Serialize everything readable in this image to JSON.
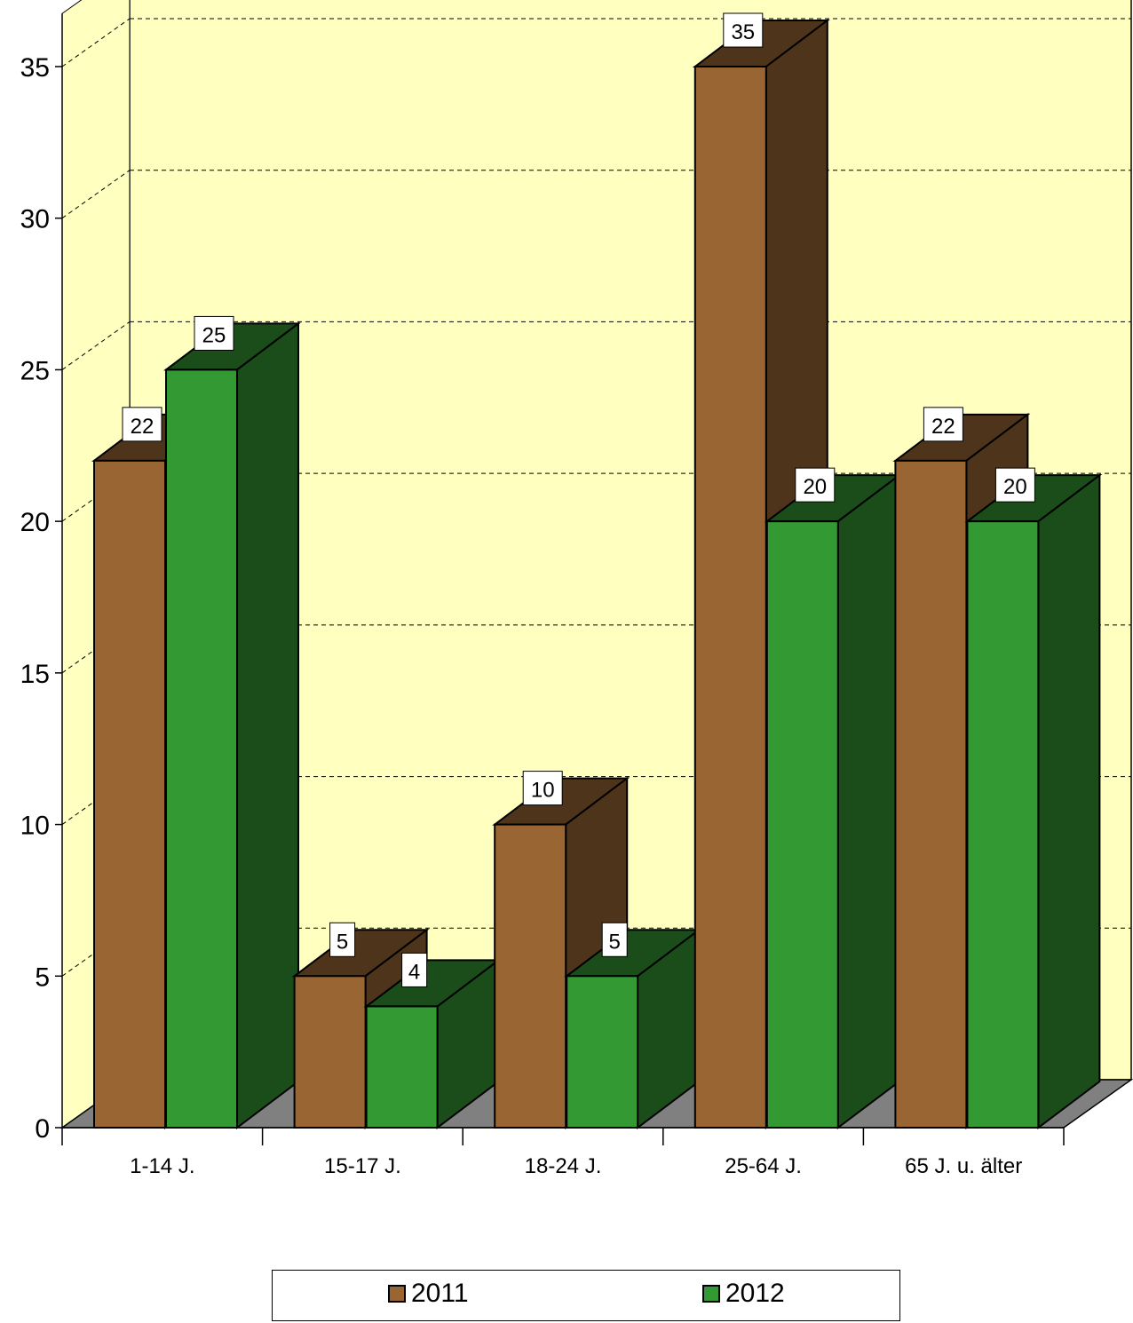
{
  "chart_data": {
    "type": "bar",
    "categories": [
      "1-14 J.",
      "15-17 J.",
      "18-24 J.",
      "25-64 J.",
      "65 J. u. älter"
    ],
    "series": [
      {
        "name": "2011",
        "values": [
          22,
          5,
          10,
          35,
          22
        ],
        "color": "#996633",
        "side_color": "#4d341a"
      },
      {
        "name": "2012",
        "values": [
          25,
          4,
          5,
          20,
          20
        ],
        "color": "#339933",
        "side_color": "#1a4d1a"
      }
    ],
    "ylim": [
      0,
      35
    ],
    "yticks": [
      0,
      5,
      10,
      15,
      20,
      25,
      30,
      35
    ],
    "grid": true,
    "legend": "bottom",
    "title": "",
    "xlabel": "",
    "ylabel": "",
    "colors": {
      "wall": "#ffffc0",
      "floor": "#808080"
    }
  }
}
